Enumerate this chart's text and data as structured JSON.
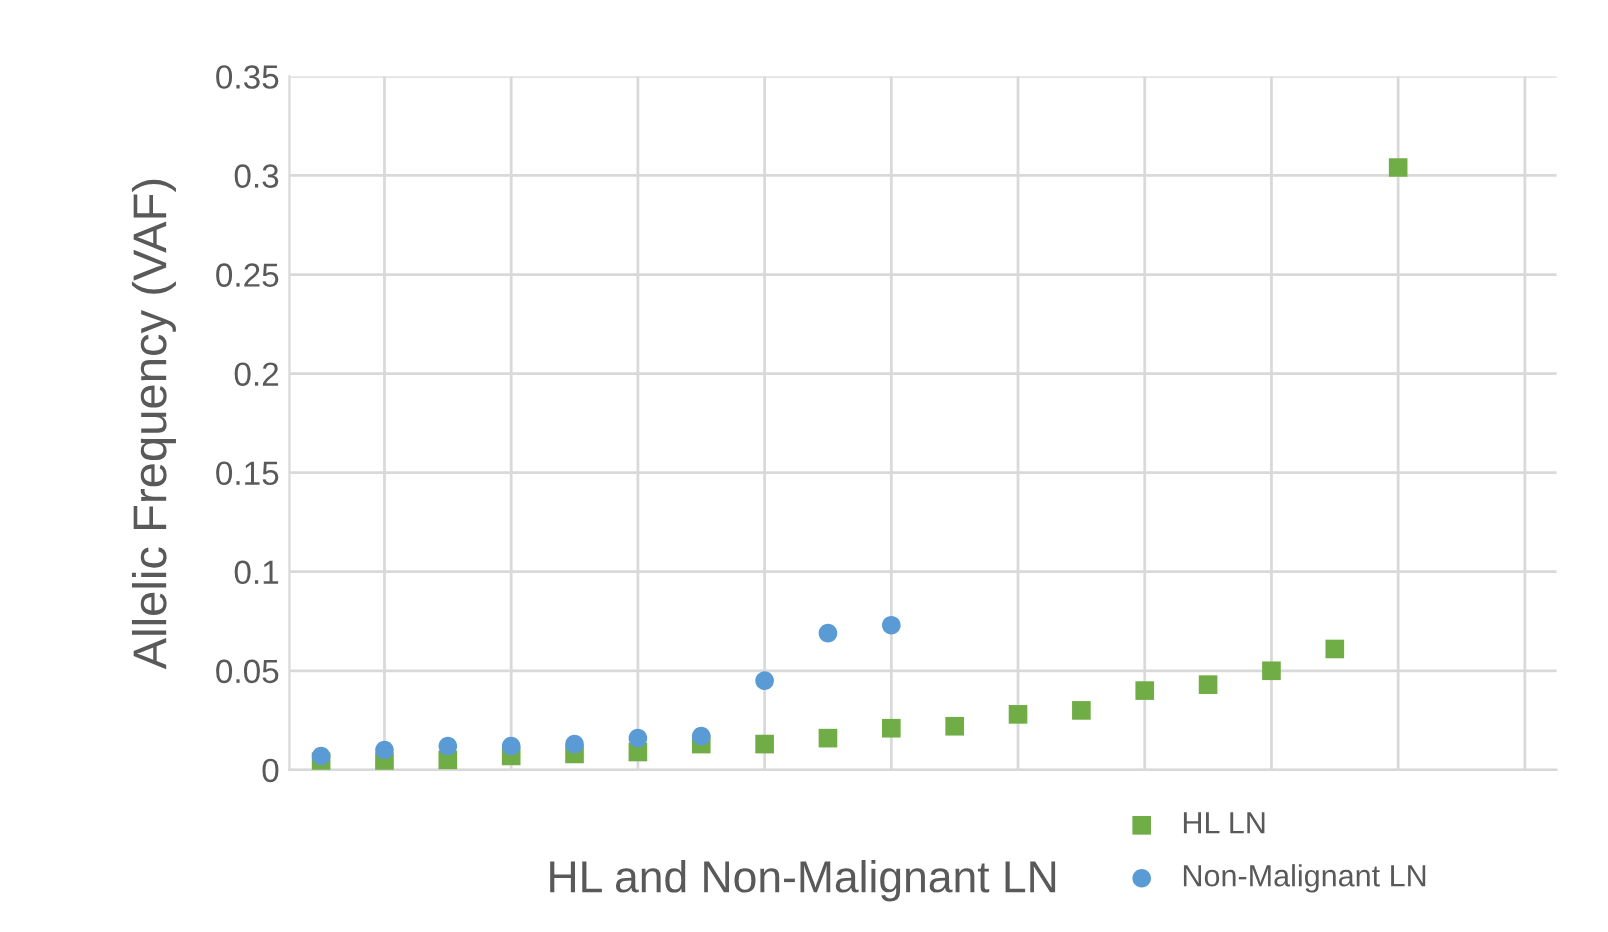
{
  "chart_data": {
    "type": "scatter",
    "xlabel": "HL and Non-Malignant LN",
    "ylabel": "Allelic Frequency (VAF)",
    "categories": [
      null,
      null,
      null,
      null,
      null,
      null,
      null,
      null,
      null,
      null,
      null,
      null,
      null,
      null,
      null,
      null,
      null,
      null,
      null,
      null
    ],
    "ylim": [
      0,
      0.35
    ],
    "yticks": [
      0,
      0.05,
      0.1,
      0.15,
      0.2,
      0.25,
      0.3,
      0.35
    ],
    "grid": true,
    "legend": "bottom right",
    "series": [
      {
        "name": "HL LN",
        "color": "#70ad47",
        "marker": "square",
        "values": [
          0.004,
          0.004,
          0.005,
          0.007,
          0.008,
          0.009,
          0.013,
          0.013,
          0.016,
          0.021,
          0.022,
          0.028,
          0.03,
          0.04,
          0.043,
          0.05,
          0.061,
          0.304,
          null,
          null
        ]
      },
      {
        "name": "Non-Malignant LN",
        "color": "#5b9bd5",
        "marker": "circle",
        "values": [
          0.007,
          0.01,
          0.012,
          0.012,
          0.013,
          0.016,
          0.017,
          0.045,
          0.069,
          0.073,
          null,
          null,
          null,
          null,
          null,
          null,
          null,
          null,
          null,
          null
        ]
      }
    ]
  }
}
